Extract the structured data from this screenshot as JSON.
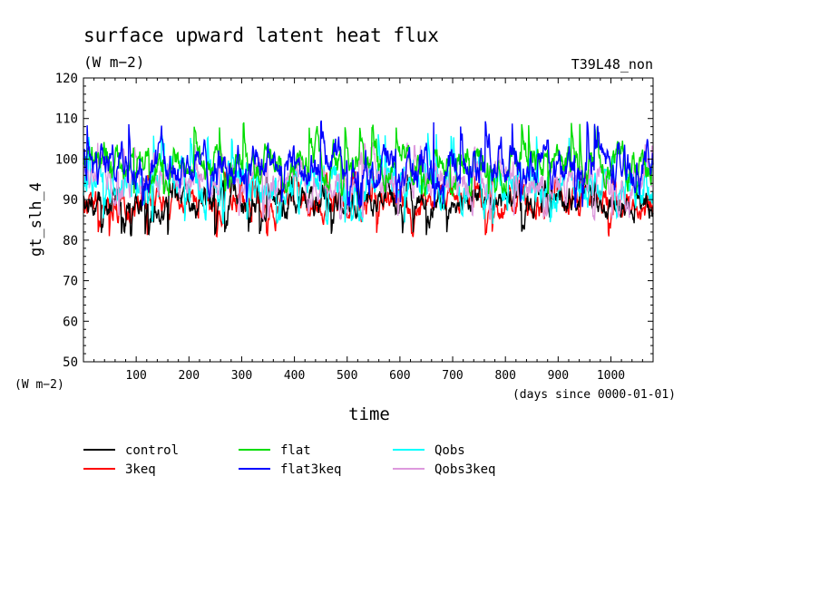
{
  "chart_data": {
    "type": "line",
    "title": "surface upward latent heat flux",
    "units": "(W m−2)",
    "run_label": "T39L48_non",
    "ylabel": "gt_slh_4",
    "y_units_label": "(W m−2)",
    "xlabel": "time",
    "x_units_label": "(days since 0000-01-01)",
    "xlim": [
      0,
      1080
    ],
    "ylim": [
      50,
      120
    ],
    "x_ticks": [
      100,
      200,
      300,
      400,
      500,
      600,
      700,
      800,
      900,
      1000
    ],
    "y_ticks": [
      50,
      60,
      70,
      80,
      90,
      100,
      110,
      120
    ],
    "grid": false,
    "legend_position": "bottom-left",
    "series": [
      {
        "name": "control",
        "color": "#000000",
        "mean": 89.5,
        "min": 80.8,
        "max": 96.0
      },
      {
        "name": "3keq",
        "color": "#ff0000",
        "mean": 89.0,
        "min": 80.8,
        "max": 97.0
      },
      {
        "name": "flat",
        "color": "#00dd00",
        "mean": 99.0,
        "min": 91.0,
        "max": 109.0
      },
      {
        "name": "flat3keq",
        "color": "#0000ff",
        "mean": 98.5,
        "min": 88.0,
        "max": 109.5
      },
      {
        "name": "Qobs",
        "color": "#00ffff",
        "mean": 94.0,
        "min": 84.0,
        "max": 106.5
      },
      {
        "name": "Qobs3keq",
        "color": "#dd99dd",
        "mean": 95.0,
        "min": 85.0,
        "max": 104.0
      }
    ]
  }
}
